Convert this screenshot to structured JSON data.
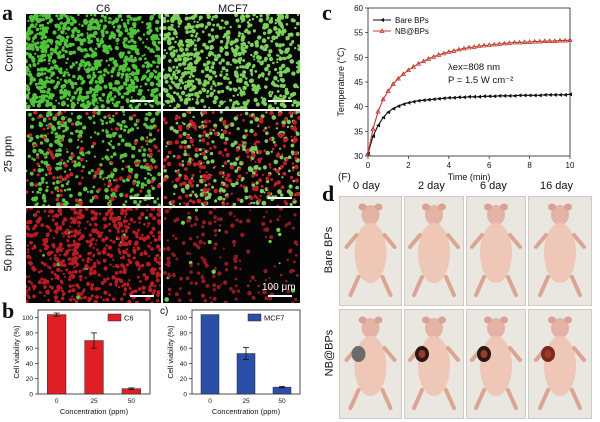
{
  "panel_a": {
    "label": "a",
    "columns": [
      "C6",
      "MCF7"
    ],
    "rows": [
      "Control",
      "25 ppm",
      "50 ppm"
    ],
    "scale_bar": "100 μm"
  },
  "panel_b": {
    "label": "b",
    "sublabel": "c)",
    "charts": [
      {
        "type": "bar",
        "legend": "C6",
        "color": "#e01f24",
        "categories": [
          "0",
          "25",
          "50"
        ],
        "values": [
          104,
          70,
          7
        ],
        "errors": [
          2,
          10,
          1
        ],
        "xlabel": "Concentration (ppm)",
        "ylabel": "Cell viability (%)",
        "ylim": [
          0,
          110
        ],
        "yticks": [
          0,
          20,
          40,
          60,
          80,
          100
        ]
      },
      {
        "type": "bar",
        "legend": "MCF7",
        "color": "#2b4fa8",
        "categories": [
          "0",
          "25",
          "50"
        ],
        "values": [
          104,
          53,
          9
        ],
        "errors": [
          0,
          8,
          1
        ],
        "xlabel": "Concentration (ppm)",
        "ylabel": "Cell viability (%)",
        "ylim": [
          0,
          110
        ],
        "yticks": [
          0,
          20,
          40,
          60,
          80,
          100
        ]
      }
    ]
  },
  "panel_c": {
    "label": "c",
    "annotation_line1": "λex=808 nm",
    "annotation_line2": "P = 1.5 W cm⁻²"
  },
  "chart_data": {
    "type": "line",
    "xlabel": "Time (min)",
    "ylabel": "Temperature (°C)",
    "xlim": [
      0,
      10
    ],
    "ylim": [
      30,
      60
    ],
    "xticks": [
      0,
      2,
      4,
      6,
      8,
      10
    ],
    "yticks": [
      30,
      35,
      40,
      45,
      50,
      55,
      60
    ],
    "legend_position": "top-left",
    "x": [
      0,
      0.25,
      0.5,
      0.75,
      1,
      1.25,
      1.5,
      1.75,
      2,
      2.25,
      2.5,
      2.75,
      3,
      3.25,
      3.5,
      3.75,
      4,
      4.25,
      4.5,
      4.75,
      5,
      5.25,
      5.5,
      5.75,
      6,
      6.25,
      6.5,
      6.75,
      7,
      7.25,
      7.5,
      7.75,
      8,
      8.25,
      8.5,
      8.75,
      9,
      9.25,
      9.5,
      9.75,
      10
    ],
    "series": [
      {
        "name": "Bare BPs",
        "color": "#111111",
        "values": [
          30.5,
          34.0,
          36.2,
          37.8,
          38.9,
          39.6,
          40.1,
          40.5,
          40.8,
          41.0,
          41.2,
          41.3,
          41.4,
          41.5,
          41.6,
          41.7,
          41.8,
          41.8,
          41.9,
          41.9,
          42.0,
          42.0,
          42.0,
          42.1,
          42.1,
          42.1,
          42.2,
          42.2,
          42.2,
          42.2,
          42.3,
          42.3,
          42.3,
          42.3,
          42.3,
          42.4,
          42.4,
          42.4,
          42.4,
          42.4,
          42.5
        ]
      },
      {
        "name": "NB@BPs",
        "color": "#c0392b",
        "values": [
          30.5,
          35.5,
          39.0,
          41.5,
          43.2,
          44.6,
          45.7,
          46.6,
          47.4,
          48.1,
          48.7,
          49.2,
          49.7,
          50.1,
          50.5,
          50.8,
          51.1,
          51.3,
          51.6,
          51.8,
          52.0,
          52.1,
          52.3,
          52.4,
          52.5,
          52.6,
          52.7,
          52.8,
          52.9,
          53.0,
          53.0,
          53.1,
          53.1,
          53.2,
          53.2,
          53.3,
          53.3,
          53.3,
          53.4,
          53.4,
          53.5
        ]
      }
    ]
  },
  "panel_d": {
    "label": "d",
    "tag": "(F)",
    "days": [
      "0 day",
      "2 day",
      "6 day",
      "16 day"
    ],
    "groups": [
      "Bare BPs",
      "NB@BPs"
    ]
  }
}
